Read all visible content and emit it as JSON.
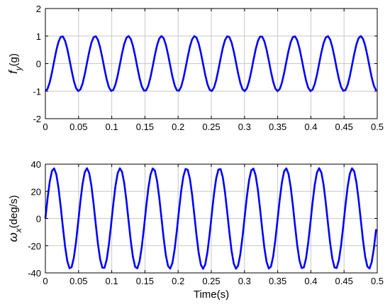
{
  "chart_data": [
    {
      "type": "line",
      "x_domain": [
        0,
        0.5
      ],
      "ylim": [
        -2,
        2
      ],
      "xticks": [
        0,
        0.05,
        0.1,
        0.15,
        0.2,
        0.25,
        0.3,
        0.35,
        0.4,
        0.45,
        0.5
      ],
      "xtick_labels": [
        "0",
        "0.05",
        "0.1",
        "0.15",
        "0.2",
        "0.25",
        "0.3",
        "0.35",
        "0.4",
        "0.45",
        "0.5"
      ],
      "yticks": [
        -2,
        -1,
        0,
        1,
        2
      ],
      "ytick_labels": [
        "-2",
        "-1",
        "0",
        "1",
        "2"
      ],
      "ylabel_main": "f",
      "ylabel_sub": "y",
      "ylabel_unit": "(g)",
      "xlabel": "",
      "grid": true,
      "series_color": "#0000ff",
      "signal": {
        "shape": "sine",
        "amplitude": 1.0,
        "period": 0.05,
        "phase_deg": -90,
        "x_start": 0.0,
        "x_end": 0.5,
        "step": 0.0033
      }
    },
    {
      "type": "line",
      "x_domain": [
        0,
        0.5
      ],
      "ylim": [
        -40,
        40
      ],
      "xticks": [
        0,
        0.05,
        0.1,
        0.15,
        0.2,
        0.25,
        0.3,
        0.35,
        0.4,
        0.45,
        0.5
      ],
      "xtick_labels": [
        "0",
        "0.05",
        "0.1",
        "0.15",
        "0.2",
        "0.25",
        "0.3",
        "0.35",
        "0.4",
        "0.45",
        "0.5"
      ],
      "yticks": [
        -40,
        -20,
        0,
        20,
        40
      ],
      "ytick_labels": [
        "-40",
        "-20",
        "0",
        "20",
        "40"
      ],
      "ylabel_main": "ω",
      "ylabel_sub": "x",
      "ylabel_unit": "(deg/s)",
      "xlabel": "Time(s)",
      "grid": true,
      "series_color": "#0000ff",
      "signal": {
        "shape": "sine",
        "amplitude": 37,
        "period": 0.05,
        "phase_deg": 0,
        "x_start": 0.0,
        "x_end": 0.5,
        "step": 0.0033
      }
    }
  ]
}
